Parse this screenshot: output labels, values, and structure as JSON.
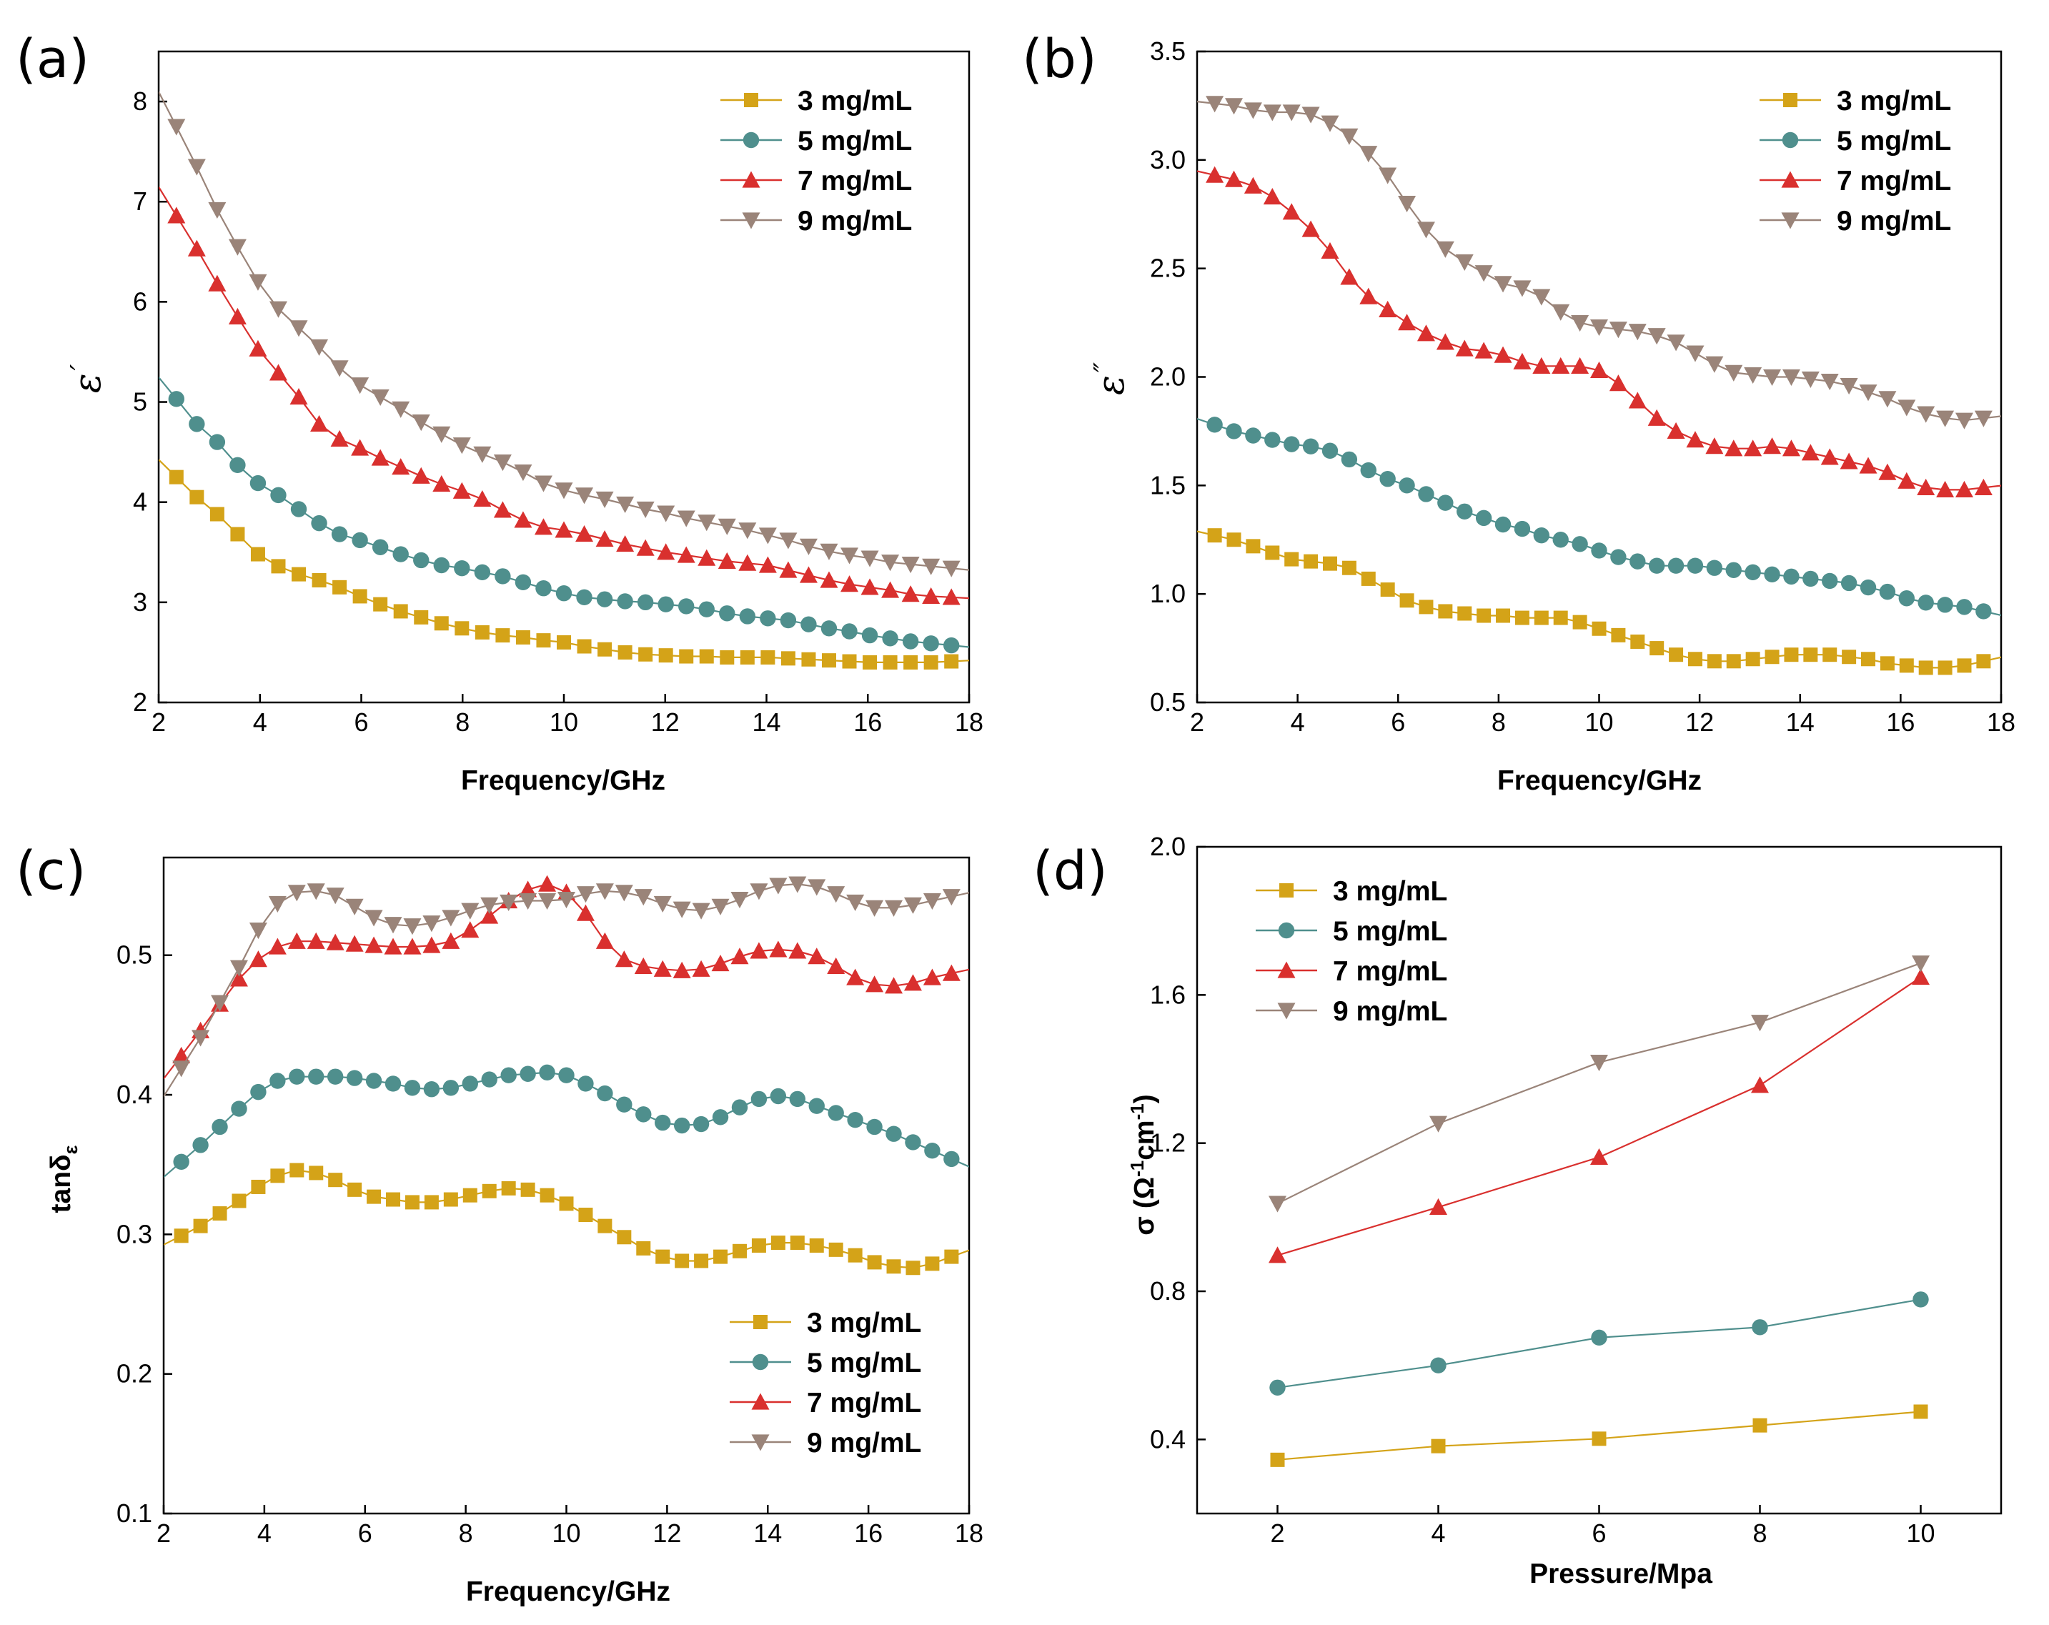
{
  "colors": {
    "3 mg/mL": "#D4A318",
    "5 mg/mL": "#4F8F8D",
    "7 mg/mL": "#D9302E",
    "9 mg/mL": "#9A8479"
  },
  "chart_data": [
    {
      "id": "a",
      "panel_label": "(a)",
      "type": "line",
      "title": "",
      "xlabel": "Frequency/GHz",
      "ylabel": "ε′",
      "ylabel_symbol": "ε",
      "ylabel_mark": "′",
      "xlim": [
        2,
        18
      ],
      "ylim": [
        2,
        8.5
      ],
      "xticks": [
        "2",
        "4",
        "6",
        "8",
        "10",
        "12",
        "14",
        "16",
        "18"
      ],
      "yticks": [
        "2",
        "3",
        "4",
        "5",
        "6",
        "7",
        "8"
      ],
      "grid": false,
      "legend_position": "top-right",
      "series": [
        {
          "name": "3 mg/mL",
          "marker": "square",
          "values": [
            4.25,
            4.05,
            3.88,
            3.68,
            3.48,
            3.36,
            3.28,
            3.22,
            3.15,
            3.06,
            2.98,
            2.91,
            2.85,
            2.79,
            2.74,
            2.7,
            2.67,
            2.65,
            2.62,
            2.6,
            2.56,
            2.53,
            2.5,
            2.48,
            2.47,
            2.46,
            2.46,
            2.45,
            2.45,
            2.45,
            2.44,
            2.43,
            2.42,
            2.41,
            2.4,
            2.4,
            2.4,
            2.4,
            2.41
          ]
        },
        {
          "name": "5 mg/mL",
          "marker": "circle",
          "values": [
            5.03,
            4.78,
            4.6,
            4.37,
            4.19,
            4.07,
            3.93,
            3.79,
            3.68,
            3.62,
            3.55,
            3.48,
            3.42,
            3.37,
            3.34,
            3.3,
            3.26,
            3.2,
            3.14,
            3.09,
            3.05,
            3.03,
            3.01,
            3.0,
            2.98,
            2.96,
            2.93,
            2.89,
            2.86,
            2.84,
            2.82,
            2.78,
            2.74,
            2.71,
            2.67,
            2.64,
            2.61,
            2.59,
            2.57
          ]
        },
        {
          "name": "7 mg/mL",
          "marker": "triangle-up",
          "values": [
            6.86,
            6.53,
            6.18,
            5.85,
            5.53,
            5.29,
            5.05,
            4.78,
            4.63,
            4.54,
            4.44,
            4.35,
            4.26,
            4.18,
            4.11,
            4.03,
            3.92,
            3.82,
            3.75,
            3.72,
            3.68,
            3.63,
            3.58,
            3.54,
            3.5,
            3.47,
            3.44,
            3.41,
            3.39,
            3.37,
            3.32,
            3.27,
            3.22,
            3.18,
            3.15,
            3.12,
            3.08,
            3.06,
            3.05
          ]
        },
        {
          "name": "9 mg/mL",
          "marker": "triangle-down",
          "values": [
            7.75,
            7.35,
            6.92,
            6.55,
            6.2,
            5.93,
            5.74,
            5.55,
            5.34,
            5.17,
            5.05,
            4.93,
            4.8,
            4.68,
            4.57,
            4.48,
            4.4,
            4.3,
            4.19,
            4.12,
            4.07,
            4.03,
            3.98,
            3.93,
            3.89,
            3.84,
            3.8,
            3.76,
            3.72,
            3.67,
            3.62,
            3.56,
            3.51,
            3.47,
            3.44,
            3.4,
            3.38,
            3.36,
            3.34
          ]
        }
      ]
    },
    {
      "id": "b",
      "panel_label": "(b)",
      "type": "line",
      "title": "",
      "xlabel": "Frequency/GHz",
      "ylabel": "ε″",
      "ylabel_symbol": "ε",
      "ylabel_mark": "″",
      "xlim": [
        2,
        18
      ],
      "ylim": [
        0.5,
        3.5
      ],
      "xticks": [
        "2",
        "4",
        "6",
        "8",
        "10",
        "12",
        "14",
        "16",
        "18"
      ],
      "yticks": [
        "0.5",
        "1.0",
        "1.5",
        "2.0",
        "2.5",
        "3.0",
        "3.5"
      ],
      "grid": false,
      "legend_position": "top-right",
      "series": [
        {
          "name": "3 mg/mL",
          "marker": "square",
          "values": [
            1.27,
            1.25,
            1.22,
            1.19,
            1.16,
            1.15,
            1.14,
            1.12,
            1.07,
            1.02,
            0.97,
            0.94,
            0.92,
            0.91,
            0.9,
            0.9,
            0.89,
            0.89,
            0.89,
            0.87,
            0.84,
            0.81,
            0.78,
            0.75,
            0.72,
            0.7,
            0.69,
            0.69,
            0.7,
            0.71,
            0.72,
            0.72,
            0.72,
            0.71,
            0.7,
            0.68,
            0.67,
            0.66,
            0.66,
            0.67,
            0.69
          ]
        },
        {
          "name": "5 mg/mL",
          "marker": "circle",
          "values": [
            1.78,
            1.75,
            1.73,
            1.71,
            1.69,
            1.68,
            1.66,
            1.62,
            1.57,
            1.53,
            1.5,
            1.46,
            1.42,
            1.38,
            1.35,
            1.32,
            1.3,
            1.27,
            1.25,
            1.23,
            1.2,
            1.17,
            1.15,
            1.13,
            1.13,
            1.13,
            1.12,
            1.11,
            1.1,
            1.09,
            1.08,
            1.07,
            1.06,
            1.05,
            1.03,
            1.01,
            0.98,
            0.96,
            0.95,
            0.94,
            0.92
          ]
        },
        {
          "name": "7 mg/mL",
          "marker": "triangle-up",
          "values": [
            2.93,
            2.91,
            2.88,
            2.83,
            2.76,
            2.68,
            2.58,
            2.46,
            2.37,
            2.31,
            2.25,
            2.2,
            2.16,
            2.13,
            2.12,
            2.1,
            2.07,
            2.05,
            2.05,
            2.05,
            2.03,
            1.97,
            1.89,
            1.81,
            1.75,
            1.71,
            1.68,
            1.67,
            1.67,
            1.68,
            1.67,
            1.65,
            1.63,
            1.61,
            1.59,
            1.56,
            1.52,
            1.49,
            1.48,
            1.48,
            1.49
          ]
        },
        {
          "name": "9 mg/mL",
          "marker": "triangle-down",
          "values": [
            3.26,
            3.25,
            3.23,
            3.22,
            3.22,
            3.21,
            3.17,
            3.11,
            3.03,
            2.93,
            2.8,
            2.68,
            2.59,
            2.53,
            2.48,
            2.43,
            2.41,
            2.37,
            2.3,
            2.25,
            2.23,
            2.22,
            2.21,
            2.19,
            2.16,
            2.11,
            2.06,
            2.02,
            2.01,
            2.0,
            2.0,
            1.99,
            1.98,
            1.96,
            1.93,
            1.9,
            1.86,
            1.83,
            1.81,
            1.8,
            1.81
          ]
        }
      ]
    },
    {
      "id": "c",
      "panel_label": "(c)",
      "type": "line",
      "title": "",
      "xlabel": "Frequency/GHz",
      "ylabel": "tanδε",
      "ylabel_main": "tanδ",
      "ylabel_sub": "ε",
      "xlim": [
        2,
        18
      ],
      "ylim": [
        0.1,
        0.57
      ],
      "xticks": [
        "2",
        "4",
        "6",
        "8",
        "10",
        "12",
        "14",
        "16",
        "18"
      ],
      "yticks": [
        "0.1",
        "0.2",
        "0.3",
        "0.4",
        "0.5"
      ],
      "grid": false,
      "legend_position": "bottom-right",
      "series": [
        {
          "name": "3 mg/mL",
          "marker": "square",
          "values": [
            0.299,
            0.306,
            0.315,
            0.324,
            0.334,
            0.342,
            0.346,
            0.344,
            0.339,
            0.332,
            0.327,
            0.325,
            0.323,
            0.323,
            0.325,
            0.328,
            0.331,
            0.333,
            0.332,
            0.328,
            0.322,
            0.314,
            0.306,
            0.298,
            0.29,
            0.284,
            0.281,
            0.281,
            0.284,
            0.288,
            0.292,
            0.294,
            0.294,
            0.292,
            0.289,
            0.285,
            0.28,
            0.277,
            0.276,
            0.279,
            0.284
          ]
        },
        {
          "name": "5 mg/mL",
          "marker": "circle",
          "values": [
            0.352,
            0.364,
            0.377,
            0.39,
            0.402,
            0.41,
            0.413,
            0.413,
            0.413,
            0.412,
            0.41,
            0.408,
            0.405,
            0.404,
            0.405,
            0.408,
            0.411,
            0.414,
            0.415,
            0.416,
            0.414,
            0.408,
            0.401,
            0.393,
            0.386,
            0.38,
            0.378,
            0.379,
            0.384,
            0.391,
            0.397,
            0.399,
            0.397,
            0.392,
            0.387,
            0.382,
            0.377,
            0.372,
            0.366,
            0.36,
            0.354
          ]
        },
        {
          "name": "7 mg/mL",
          "marker": "triangle-up",
          "values": [
            0.428,
            0.446,
            0.465,
            0.483,
            0.497,
            0.506,
            0.51,
            0.51,
            0.509,
            0.508,
            0.507,
            0.506,
            0.506,
            0.507,
            0.51,
            0.518,
            0.528,
            0.539,
            0.547,
            0.551,
            0.545,
            0.53,
            0.51,
            0.497,
            0.492,
            0.49,
            0.489,
            0.49,
            0.494,
            0.499,
            0.503,
            0.504,
            0.503,
            0.499,
            0.492,
            0.484,
            0.479,
            0.478,
            0.48,
            0.484,
            0.487
          ]
        },
        {
          "name": "9 mg/mL",
          "marker": "triangle-down",
          "values": [
            0.419,
            0.441,
            0.466,
            0.491,
            0.518,
            0.537,
            0.545,
            0.546,
            0.543,
            0.535,
            0.527,
            0.522,
            0.521,
            0.523,
            0.527,
            0.532,
            0.536,
            0.538,
            0.539,
            0.539,
            0.54,
            0.544,
            0.546,
            0.545,
            0.542,
            0.537,
            0.533,
            0.532,
            0.535,
            0.54,
            0.546,
            0.55,
            0.551,
            0.549,
            0.544,
            0.538,
            0.534,
            0.534,
            0.536,
            0.539,
            0.542
          ]
        }
      ]
    },
    {
      "id": "d",
      "panel_label": "(d)",
      "type": "line",
      "title": "",
      "xlabel": "Pressure/Mpa",
      "ylabel": "σ (Ω-1cm-1)",
      "ylabel_prefix": "σ (Ω",
      "ylabel_exp": "-1",
      "ylabel_mid": "cm",
      "ylabel_suffix": ")",
      "xlim": [
        1,
        11
      ],
      "ylim": [
        0.2,
        2.0
      ],
      "xticks": [
        "2",
        "4",
        "6",
        "8",
        "10"
      ],
      "yticks": [
        "0.4",
        "0.8",
        "1.2",
        "1.6",
        "2.0"
      ],
      "grid": false,
      "legend_position": "top-left",
      "x": [
        2,
        4,
        6,
        8,
        10
      ],
      "series": [
        {
          "name": "3 mg/mL",
          "marker": "square",
          "values": [
            0.345,
            0.382,
            0.402,
            0.438,
            0.475
          ]
        },
        {
          "name": "5 mg/mL",
          "marker": "circle",
          "values": [
            0.54,
            0.6,
            0.675,
            0.703,
            0.778
          ]
        },
        {
          "name": "7 mg/mL",
          "marker": "triangle-up",
          "values": [
            0.897,
            1.027,
            1.162,
            1.356,
            1.648
          ]
        },
        {
          "name": "9 mg/mL",
          "marker": "triangle-down",
          "values": [
            1.037,
            1.253,
            1.418,
            1.526,
            1.686
          ]
        }
      ]
    }
  ]
}
